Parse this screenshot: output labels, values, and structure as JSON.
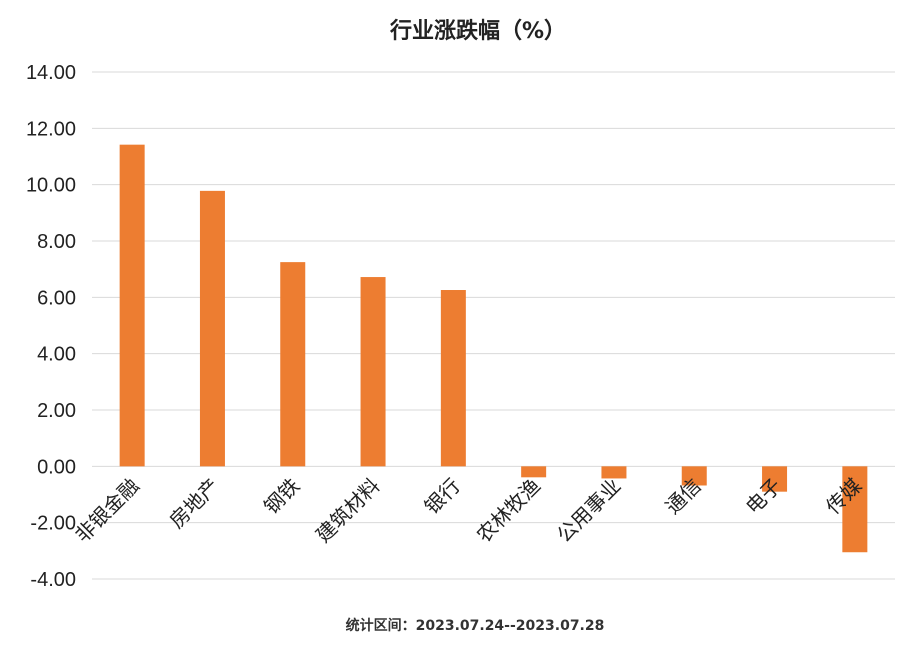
{
  "chart_data": {
    "type": "bar",
    "title": "行业涨跌幅（%）",
    "xlabel": "",
    "ylabel": "",
    "categories": [
      "非银金融",
      "房地产",
      "钢铁",
      "建筑材料",
      "银行",
      "农林牧渔",
      "公用事业",
      "通信",
      "电子",
      "传媒"
    ],
    "values": [
      11.42,
      9.78,
      7.25,
      6.72,
      6.26,
      -0.39,
      -0.43,
      -0.68,
      -0.9,
      -3.05
    ],
    "ylim": [
      -4,
      14
    ],
    "yticks": [
      "-4.00",
      "-2.00",
      "0.00",
      "2.00",
      "4.00",
      "6.00",
      "8.00",
      "10.00",
      "12.00",
      "14.00"
    ],
    "grid": true,
    "bar_color": "#ED7D31"
  },
  "footer": "统计区间：2023.07.24--2023.07.28"
}
